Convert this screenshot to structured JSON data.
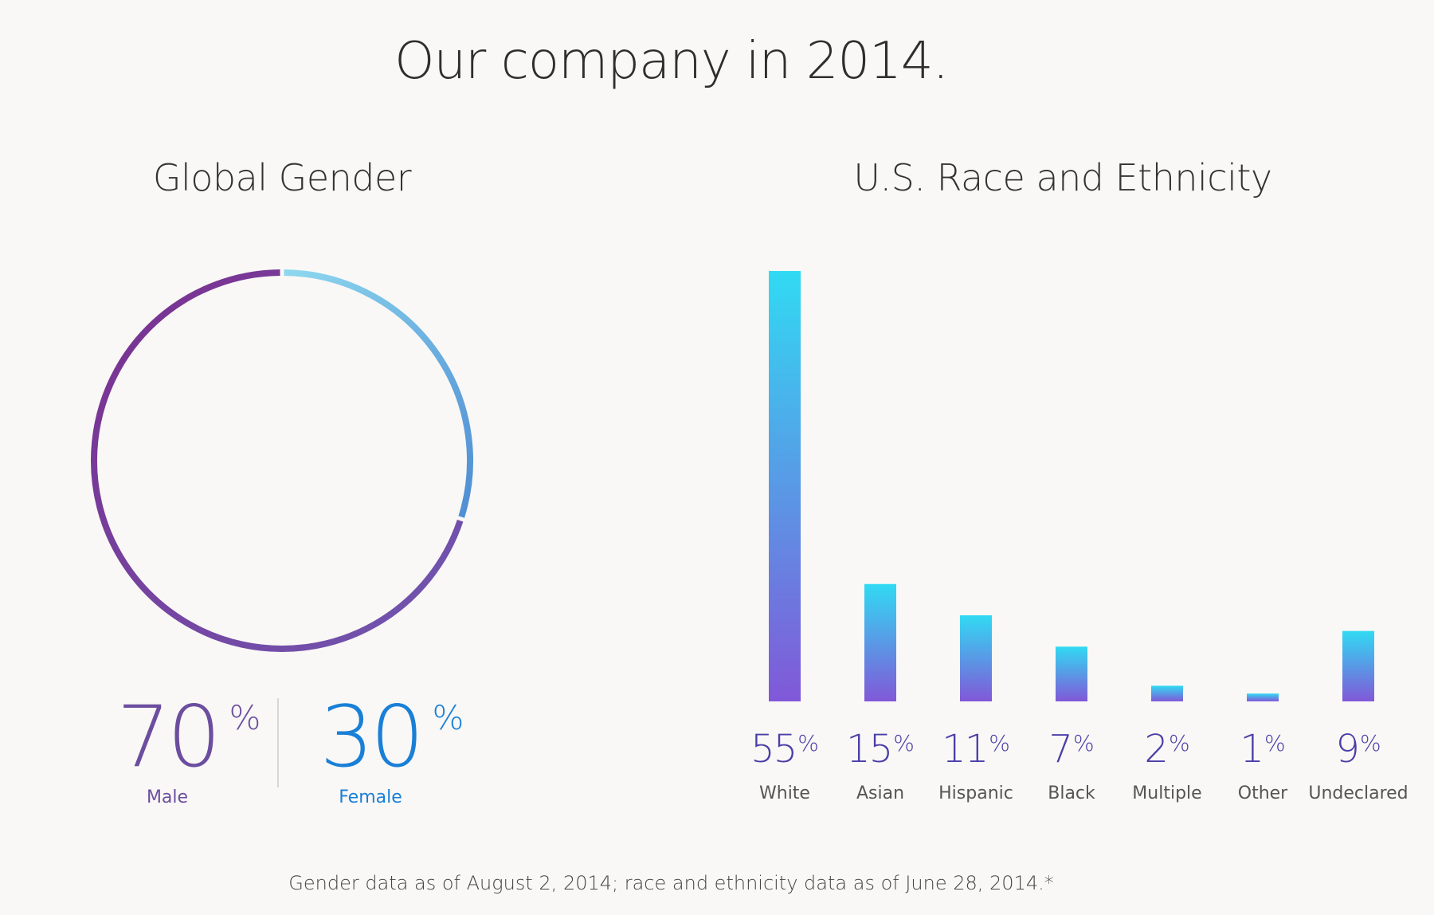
{
  "page": {
    "title": "Our company in 2014.",
    "footnote": "Gender data as of August 2, 2014; race and ethnicity data as of June 28, 2014.*"
  },
  "gender": {
    "title": "Global Gender",
    "male": {
      "value": "70",
      "percent_sign": "%",
      "label": "Male",
      "color": "#6c4e9f"
    },
    "female": {
      "value": "30",
      "percent_sign": "%",
      "label": "Female",
      "color": "#1a7fd6"
    }
  },
  "race": {
    "title": "U.S. Race and Ethnicity",
    "percent_sign": "%"
  },
  "colors": {
    "background": "#f9f8f6",
    "ring_male_start": "#7b2f8f",
    "ring_male_end": "#6f57b0",
    "ring_female_start": "#8ed8ef",
    "ring_female_end": "#4f8ed3",
    "bar_top": "#31daf3",
    "bar_bottom": "#8158d8",
    "value_text": "#4a3ea8"
  },
  "chart_data": [
    {
      "type": "pie",
      "title": "Global Gender",
      "categories": [
        "Male",
        "Female"
      ],
      "values": [
        70,
        30
      ],
      "style": "donut-ring"
    },
    {
      "type": "bar",
      "title": "U.S. Race and Ethnicity",
      "categories": [
        "White",
        "Asian",
        "Hispanic",
        "Black",
        "Multiple",
        "Other",
        "Undeclared"
      ],
      "values": [
        55,
        15,
        11,
        7,
        2,
        1,
        9
      ],
      "value_labels": [
        "55",
        "15",
        "11",
        "7",
        "2",
        "1",
        "9"
      ],
      "ylim": [
        0,
        55
      ],
      "xlabel": "",
      "ylabel": "",
      "grid": false
    }
  ]
}
